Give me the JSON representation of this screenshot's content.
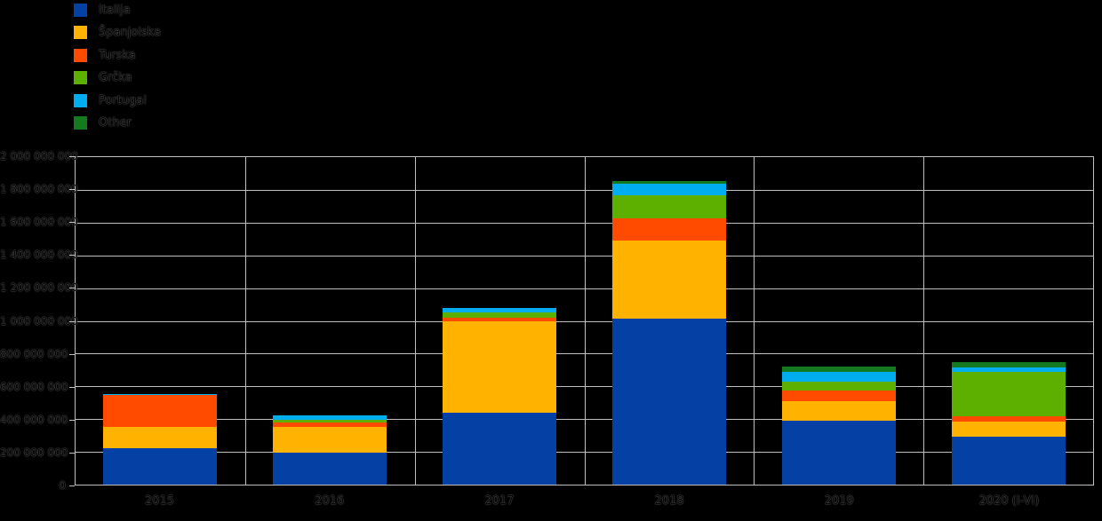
{
  "chart_data": {
    "type": "bar",
    "stacked": true,
    "title": "",
    "xlabel": "",
    "ylabel": "",
    "categories": [
      "2015",
      "2016",
      "2017",
      "2018",
      "2019",
      "2020 (I-VI)"
    ],
    "series": [
      {
        "name": "Italija",
        "color": "#0540A5",
        "values": [
          225000000,
          195000000,
          440000000,
          1015000000,
          390000000,
          295000000
        ]
      },
      {
        "name": "Španjolska",
        "color": "#FFB200",
        "values": [
          125000000,
          155000000,
          555000000,
          475000000,
          120000000,
          90000000
        ]
      },
      {
        "name": "Turska",
        "color": "#FF4B00",
        "values": [
          195000000,
          30000000,
          25000000,
          135000000,
          65000000,
          30000000
        ]
      },
      {
        "name": "Grčka",
        "color": "#5DB000",
        "values": [
          0,
          15000000,
          30000000,
          140000000,
          55000000,
          275000000
        ]
      },
      {
        "name": "Portugal",
        "color": "#00AEEF",
        "values": [
          5000000,
          30000000,
          30000000,
          75000000,
          60000000,
          25000000
        ]
      },
      {
        "name": "Other",
        "color": "#137A1F",
        "values": [
          0,
          0,
          0,
          15000000,
          30000000,
          35000000
        ]
      }
    ],
    "ylim": [
      0,
      2000000000
    ],
    "y_ticks": [
      2000000000,
      1800000000,
      1600000000,
      1400000000,
      1200000000,
      1000000000,
      800000000,
      600000000,
      400000000,
      200000000,
      0
    ],
    "y_tick_labels": [
      "2 000 000 000",
      "1 800 000 000",
      "1 600 000 000",
      "1 400 000 000",
      "1 200 000 000",
      "1 000 000 000",
      "800 000 000",
      "600 000 000",
      "400 000 000",
      "200 000 000",
      "0"
    ],
    "grid": true,
    "legend_position": "top-left",
    "background_color": "#000000",
    "gridline_color": "#BFBFBF",
    "text_color": "#000000"
  }
}
